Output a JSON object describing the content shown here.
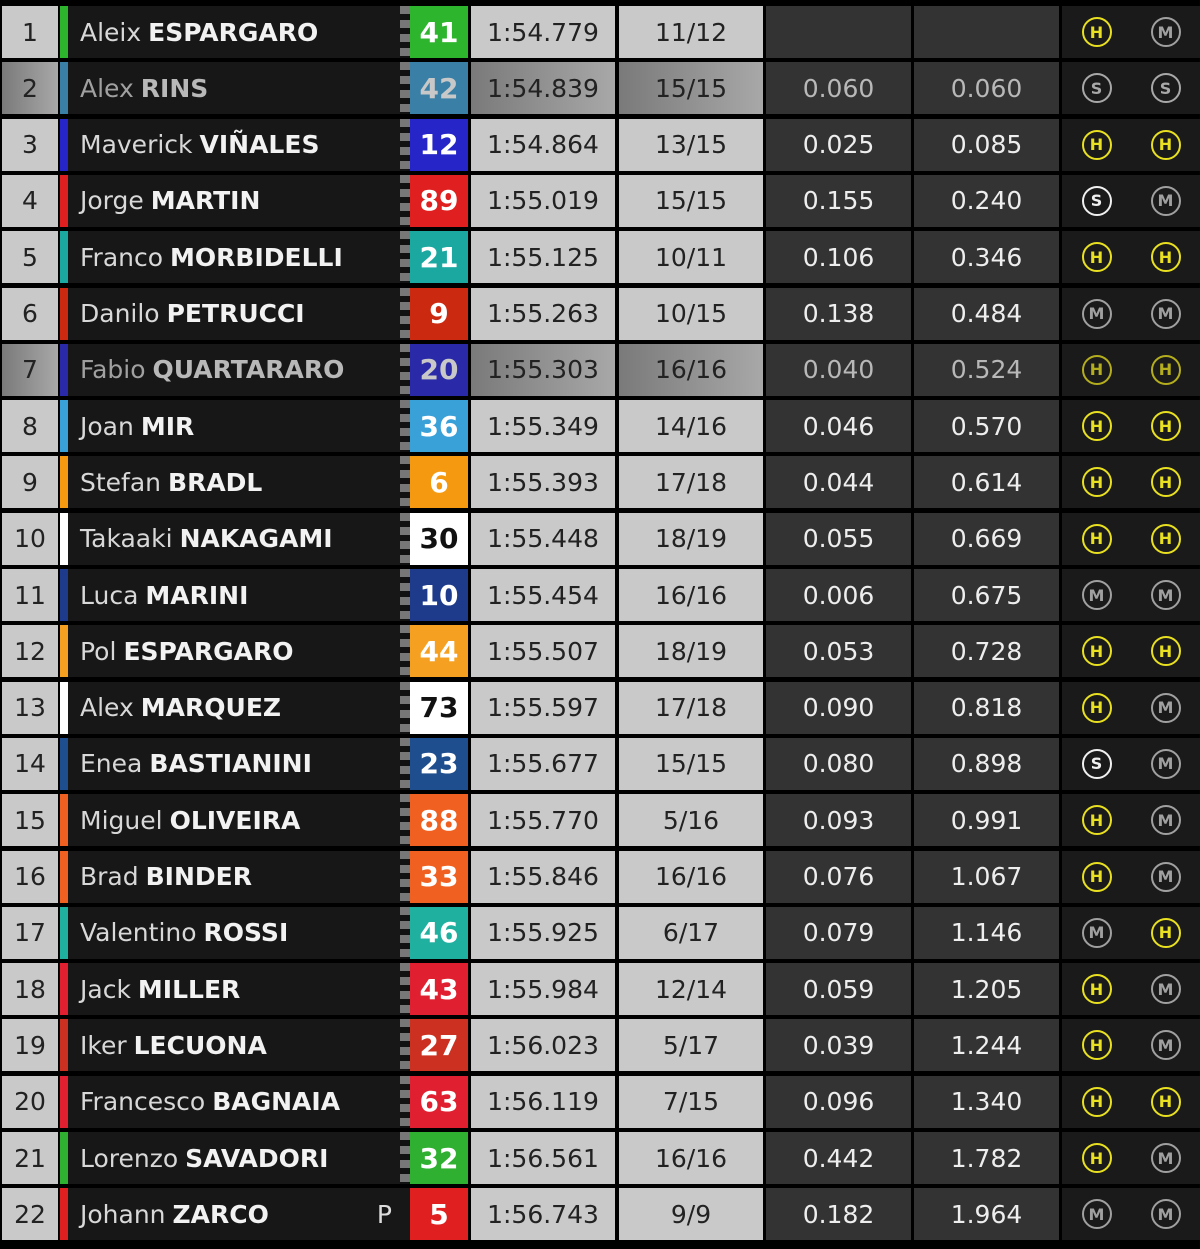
{
  "tyre_colors": {
    "H": "#e8e020",
    "M": "#a0a0a0",
    "S": "#f0f0f0",
    "S_dim": "#a8a8a8"
  },
  "rows": [
    {
      "pos": "1",
      "first": "Aleix",
      "last": "ESPARGARO",
      "num": "41",
      "team_color": "#2db52d",
      "num_bg": "#2db52d",
      "time": "1:54.779",
      "laps": "11/12",
      "gap1": "",
      "gap2": "",
      "tyres": [
        "H",
        "M"
      ]
    },
    {
      "pos": "2",
      "first": "Alex",
      "last": "RINS",
      "num": "42",
      "team_color": "#3a80a6",
      "num_bg": "#3a80a6",
      "time": "1:54.839",
      "laps": "15/15",
      "gap1": "0.060",
      "gap2": "0.060",
      "tyres": [
        "S",
        "S"
      ],
      "dim": true
    },
    {
      "pos": "3",
      "first": "Maverick",
      "last": "VIÑALES",
      "num": "12",
      "team_color": "#2525c8",
      "num_bg": "#2525c8",
      "time": "1:54.864",
      "laps": "13/15",
      "gap1": "0.025",
      "gap2": "0.085",
      "tyres": [
        "H",
        "H"
      ]
    },
    {
      "pos": "4",
      "first": "Jorge",
      "last": "MARTIN",
      "num": "89",
      "team_color": "#e02020",
      "num_bg": "#e02020",
      "time": "1:55.019",
      "laps": "15/15",
      "gap1": "0.155",
      "gap2": "0.240",
      "tyres": [
        "S",
        "M"
      ]
    },
    {
      "pos": "5",
      "first": "Franco",
      "last": "MORBIDELLI",
      "num": "21",
      "team_color": "#1aa8a0",
      "num_bg": "#1aa8a0",
      "time": "1:55.125",
      "laps": "10/11",
      "gap1": "0.106",
      "gap2": "0.346",
      "tyres": [
        "H",
        "H"
      ]
    },
    {
      "pos": "6",
      "first": "Danilo",
      "last": "PETRUCCI",
      "num": "9",
      "team_color": "#cc2a10",
      "num_bg": "#cc2a10",
      "time": "1:55.263",
      "laps": "10/15",
      "gap1": "0.138",
      "gap2": "0.484",
      "tyres": [
        "M",
        "M"
      ]
    },
    {
      "pos": "7",
      "first": "Fabio",
      "last": "QUARTARARO",
      "num": "20",
      "team_color": "#2a2aa8",
      "num_bg": "#2a2aa8",
      "time": "1:55.303",
      "laps": "16/16",
      "gap1": "0.040",
      "gap2": "0.524",
      "tyres": [
        "H",
        "H"
      ],
      "dim": true
    },
    {
      "pos": "8",
      "first": "Joan",
      "last": "MIR",
      "num": "36",
      "team_color": "#3aa0d8",
      "num_bg": "#3aa0d8",
      "time": "1:55.349",
      "laps": "14/16",
      "gap1": "0.046",
      "gap2": "0.570",
      "tyres": [
        "H",
        "H"
      ]
    },
    {
      "pos": "9",
      "first": "Stefan",
      "last": "BRADL",
      "num": "6",
      "team_color": "#f59a10",
      "num_bg": "#f59a10",
      "time": "1:55.393",
      "laps": "17/18",
      "gap1": "0.044",
      "gap2": "0.614",
      "tyres": [
        "H",
        "H"
      ]
    },
    {
      "pos": "10",
      "first": "Takaaki",
      "last": "NAKAGAMI",
      "num": "30",
      "team_color": "#ffffff",
      "num_bg": "#ffffff",
      "num_fg": "#111111",
      "time": "1:55.448",
      "laps": "18/19",
      "gap1": "0.055",
      "gap2": "0.669",
      "tyres": [
        "H",
        "H"
      ]
    },
    {
      "pos": "11",
      "first": "Luca",
      "last": "MARINI",
      "num": "10",
      "team_color": "#1e3a8a",
      "num_bg": "#1e3a8a",
      "time": "1:55.454",
      "laps": "16/16",
      "gap1": "0.006",
      "gap2": "0.675",
      "tyres": [
        "M",
        "M"
      ]
    },
    {
      "pos": "12",
      "first": "Pol",
      "last": "ESPARGARO",
      "num": "44",
      "team_color": "#f5a020",
      "num_bg": "#f5a020",
      "time": "1:55.507",
      "laps": "18/19",
      "gap1": "0.053",
      "gap2": "0.728",
      "tyres": [
        "H",
        "H"
      ]
    },
    {
      "pos": "13",
      "first": "Alex",
      "last": "MARQUEZ",
      "num": "73",
      "team_color": "#ffffff",
      "num_bg": "#ffffff",
      "num_fg": "#111111",
      "time": "1:55.597",
      "laps": "17/18",
      "gap1": "0.090",
      "gap2": "0.818",
      "tyres": [
        "H",
        "M"
      ]
    },
    {
      "pos": "14",
      "first": "Enea",
      "last": "BASTIANINI",
      "num": "23",
      "team_color": "#1e4e8e",
      "num_bg": "#1e4e8e",
      "time": "1:55.677",
      "laps": "15/15",
      "gap1": "0.080",
      "gap2": "0.898",
      "tyres": [
        "S",
        "M"
      ]
    },
    {
      "pos": "15",
      "first": "Miguel",
      "last": "OLIVEIRA",
      "num": "88",
      "team_color": "#f06020",
      "num_bg": "#f06020",
      "time": "1:55.770",
      "laps": "5/16",
      "gap1": "0.093",
      "gap2": "0.991",
      "tyres": [
        "H",
        "M"
      ]
    },
    {
      "pos": "16",
      "first": "Brad",
      "last": "BINDER",
      "num": "33",
      "team_color": "#f06020",
      "num_bg": "#f06020",
      "time": "1:55.846",
      "laps": "16/16",
      "gap1": "0.076",
      "gap2": "1.067",
      "tyres": [
        "H",
        "M"
      ]
    },
    {
      "pos": "17",
      "first": "Valentino",
      "last": "ROSSI",
      "num": "46",
      "team_color": "#20b0a0",
      "num_bg": "#20b0a0",
      "time": "1:55.925",
      "laps": "6/17",
      "gap1": "0.079",
      "gap2": "1.146",
      "tyres": [
        "M",
        "H"
      ]
    },
    {
      "pos": "18",
      "first": "Jack",
      "last": "MILLER",
      "num": "43",
      "team_color": "#e02030",
      "num_bg": "#e02030",
      "time": "1:55.984",
      "laps": "12/14",
      "gap1": "0.059",
      "gap2": "1.205",
      "tyres": [
        "H",
        "M"
      ]
    },
    {
      "pos": "19",
      "first": "Iker",
      "last": "LECUONA",
      "num": "27",
      "team_color": "#cc3020",
      "num_bg": "#cc3020",
      "time": "1:56.023",
      "laps": "5/17",
      "gap1": "0.039",
      "gap2": "1.244",
      "tyres": [
        "H",
        "M"
      ]
    },
    {
      "pos": "20",
      "first": "Francesco",
      "last": "BAGNAIA",
      "num": "63",
      "team_color": "#e02030",
      "num_bg": "#e02030",
      "time": "1:56.119",
      "laps": "7/15",
      "gap1": "0.096",
      "gap2": "1.340",
      "tyres": [
        "H",
        "H"
      ]
    },
    {
      "pos": "21",
      "first": "Lorenzo",
      "last": "SAVADORI",
      "num": "32",
      "team_color": "#30b030",
      "num_bg": "#30b030",
      "time": "1:56.561",
      "laps": "16/16",
      "gap1": "0.442",
      "gap2": "1.782",
      "tyres": [
        "H",
        "M"
      ]
    },
    {
      "pos": "22",
      "first": "Johann",
      "last": "ZARCO",
      "num": "5",
      "team_color": "#e02020",
      "num_bg": "#e02020",
      "time": "1:56.743",
      "laps": "9/9",
      "gap1": "0.182",
      "gap2": "1.964",
      "tyres": [
        "M",
        "M"
      ],
      "pit": "P",
      "no_checker": true
    }
  ]
}
